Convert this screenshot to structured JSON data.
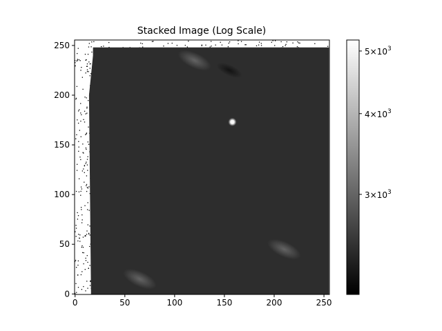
{
  "chart_data": {
    "type": "heatmap",
    "title": "Stacked Image (Log Scale)",
    "xlabel": "",
    "ylabel": "",
    "xlim": [
      -0.5,
      255.5
    ],
    "ylim": [
      -0.5,
      255.5
    ],
    "origin": "lower",
    "x_ticks": [
      0,
      50,
      100,
      150,
      200,
      250
    ],
    "y_ticks": [
      0,
      50,
      100,
      150,
      200,
      250
    ],
    "grid": false,
    "colormap": "gray",
    "colorbar": {
      "scale": "log",
      "vmin": 2100,
      "vmax": 5200,
      "ticks": [
        3000,
        4000,
        5000
      ],
      "tick_labels": [
        {
          "base": "3",
          "exp": "3"
        },
        {
          "base": "4",
          "exp": "3"
        },
        {
          "base": "5",
          "exp": "3"
        }
      ]
    },
    "features": {
      "valid_region": {
        "x_start": 18,
        "x_end": 255,
        "y_top": 248,
        "background_value": 2250
      },
      "left_edge_boundary": [
        [
          0,
          16
        ],
        [
          100,
          15
        ],
        [
          200,
          14
        ],
        [
          240,
          18
        ],
        [
          248,
          18
        ]
      ],
      "bright_source": {
        "x": 158,
        "y": 173,
        "value": 5200
      },
      "diffuse_features": [
        {
          "x": 120,
          "y": 235,
          "value": 2600
        },
        {
          "x": 210,
          "y": 45,
          "value": 2550
        },
        {
          "x": 65,
          "y": 15,
          "value": 2550
        },
        {
          "x": 155,
          "y": 225,
          "value": 2150
        }
      ]
    }
  },
  "colors": {
    "axis": "#000000",
    "background": "#ffffff",
    "image_background": "#2d2d2d",
    "colormap_low": "#000000",
    "colormap_high": "#ffffff"
  }
}
